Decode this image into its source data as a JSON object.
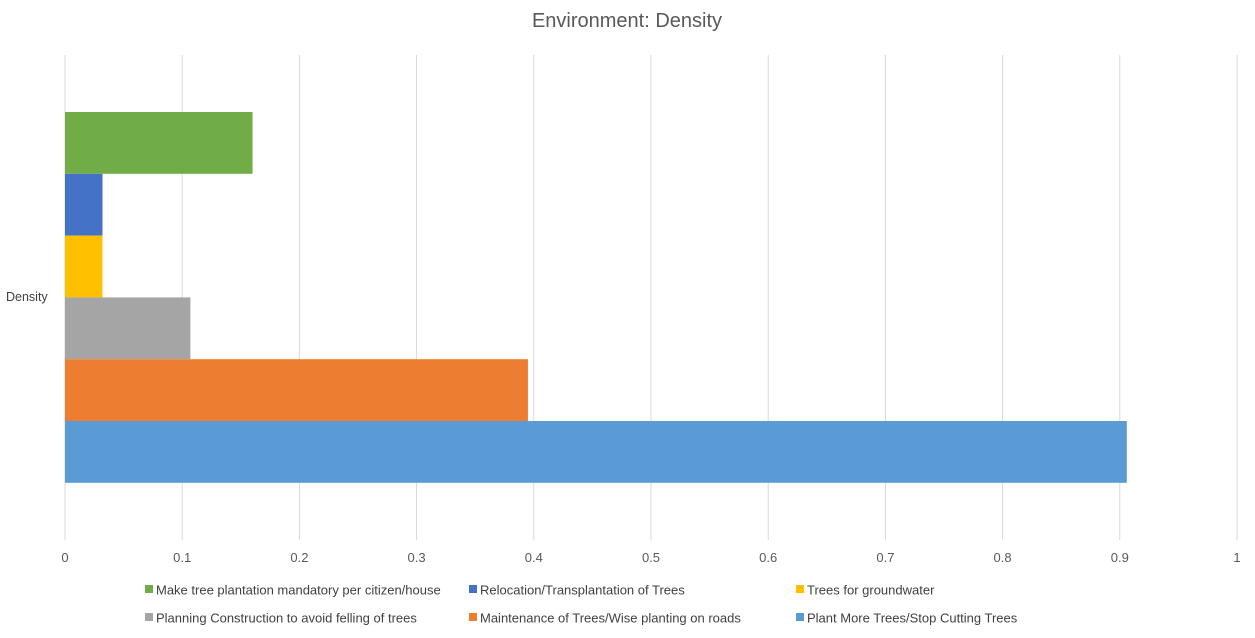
{
  "chart_data": {
    "type": "bar",
    "orientation": "horizontal",
    "title": "Environment: Density",
    "categories": [
      "Density"
    ],
    "xlim": [
      0,
      1
    ],
    "ticks": [
      "0",
      "0.1",
      "0.2",
      "0.3",
      "0.4",
      "0.5",
      "0.6",
      "0.7",
      "0.8",
      "0.9",
      "1"
    ],
    "grid": true,
    "legend_position": "bottom",
    "series": [
      {
        "name": "Make tree plantation mandatory per citizen/house",
        "values": [
          0.16
        ],
        "color": "#70AD47"
      },
      {
        "name": "Relocation/Transplantation of Trees",
        "values": [
          0.032
        ],
        "color": "#4472C4"
      },
      {
        "name": "Trees for groundwater",
        "values": [
          0.032
        ],
        "color": "#FFC000"
      },
      {
        "name": "Planning Construction to avoid felling of trees",
        "values": [
          0.107
        ],
        "color": "#A5A5A5"
      },
      {
        "name": "Maintenance of Trees/Wise planting on roads",
        "values": [
          0.395
        ],
        "color": "#ED7D31"
      },
      {
        "name": "Plant More Trees/Stop Cutting Trees",
        "values": [
          0.906
        ],
        "color": "#5B9BD5"
      }
    ]
  }
}
